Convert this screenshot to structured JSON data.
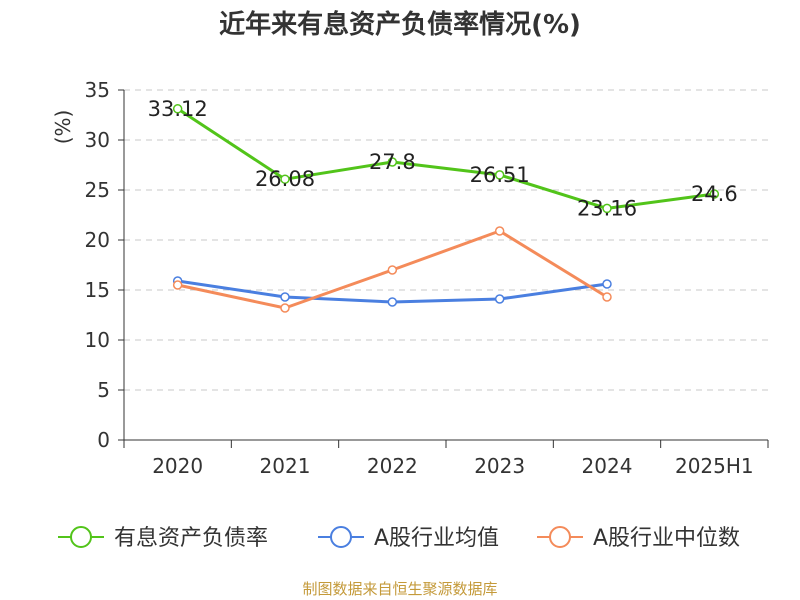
{
  "page": {
    "title": "近年来有息资产负债率情况(%)",
    "source": "制图数据来自恒生聚源数据库"
  },
  "chart_data": {
    "type": "line",
    "title": "近年来有息资产负债率情况(%)",
    "ylabel": "(%)",
    "xlabel": "",
    "categories": [
      "2020",
      "2021",
      "2022",
      "2023",
      "2024",
      "2025H1"
    ],
    "ylim": [
      0,
      35
    ],
    "yticks": [
      0,
      5,
      10,
      15,
      20,
      25,
      30,
      35
    ],
    "grid": "horizontal-dashed",
    "legend_position": "bottom",
    "series": [
      {
        "name": "有息资产负债率",
        "color": "#52c41a",
        "values": [
          33.12,
          26.08,
          27.8,
          26.51,
          23.16,
          24.6
        ],
        "labels": [
          "33.12",
          "26.08",
          "27.8",
          "26.51",
          "23.16",
          "24.6"
        ]
      },
      {
        "name": "A股行业均值",
        "color": "#4a7fe0",
        "values": [
          15.9,
          14.3,
          13.8,
          14.1,
          15.6,
          null
        ]
      },
      {
        "name": "A股行业中位数",
        "color": "#f48b5a",
        "values": [
          15.5,
          13.2,
          17.0,
          20.9,
          14.3,
          null
        ]
      }
    ]
  }
}
